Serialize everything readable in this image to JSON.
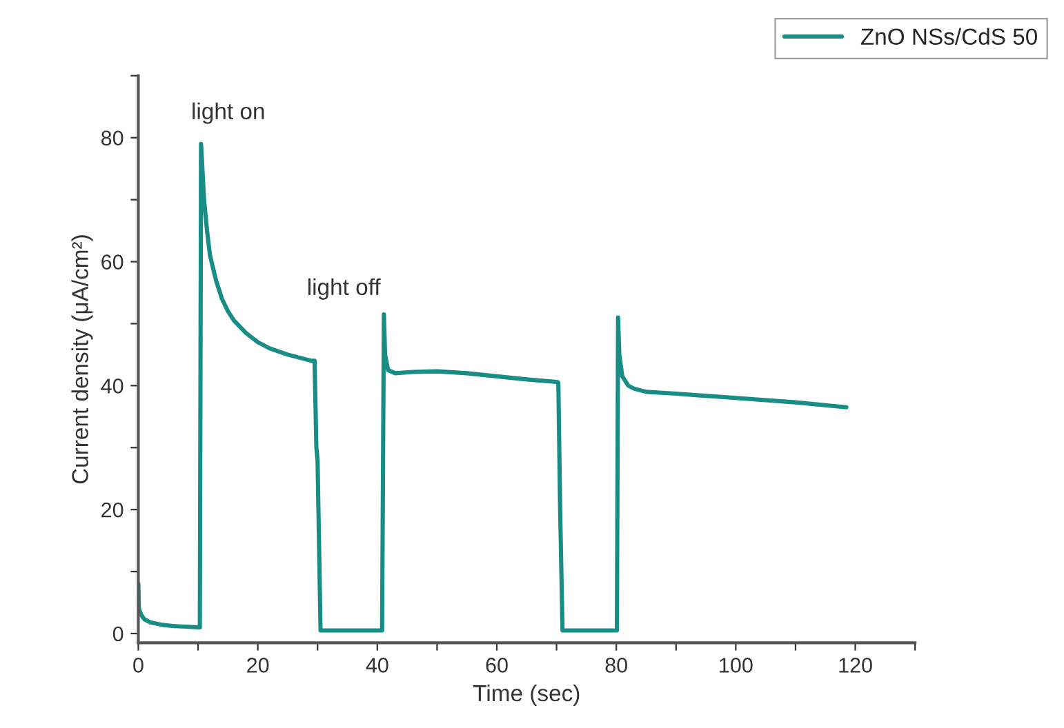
{
  "chart_data": {
    "type": "line",
    "xlabel": "Time (sec)",
    "ylabel": "Current density (μA/cm²)",
    "x": [
      0,
      0.1,
      0.5,
      1,
      2,
      4,
      6,
      8,
      10,
      10.3,
      10.5,
      11,
      11.5,
      12,
      13,
      14,
      15,
      16,
      18,
      20,
      22,
      25,
      27,
      29,
      29.5,
      29.8,
      30,
      30.5,
      32,
      35,
      38,
      40.8,
      41.1,
      41.3,
      41.8,
      43,
      46,
      50,
      55,
      60,
      65,
      70,
      70.3,
      70.6,
      71,
      75,
      80.1,
      80.3,
      80.5,
      81,
      82,
      83,
      85,
      90,
      100,
      110,
      118.5
    ],
    "series": [
      {
        "name": "ZnO NSs/CdS 50",
        "color": "#1a8c86",
        "values": [
          8,
          4,
          3,
          2.3,
          1.8,
          1.4,
          1.2,
          1.1,
          1,
          1,
          79,
          70,
          65,
          61,
          57,
          54,
          52,
          50.5,
          48.5,
          47,
          46,
          45,
          44.5,
          44,
          44,
          30,
          28,
          0.5,
          0.5,
          0.5,
          0.5,
          0.5,
          51.5,
          45,
          42.5,
          42,
          42.2,
          42.3,
          42,
          41.5,
          41,
          40.6,
          40.5,
          20,
          0.5,
          0.5,
          0.5,
          51,
          45,
          41.5,
          40,
          39.5,
          39,
          38.7,
          38,
          37.3,
          36.5
        ]
      }
    ],
    "xlim": [
      0,
      130
    ],
    "ylim": [
      -1.5,
      90
    ],
    "xticks": [
      0,
      {
        "value": 10,
        "label": null
      },
      20,
      {
        "value": 30,
        "label": null
      },
      40,
      {
        "value": 50,
        "label": null
      },
      60,
      {
        "value": 70,
        "label": null
      },
      80,
      {
        "value": 90,
        "label": null
      },
      100,
      {
        "value": 110,
        "label": null
      },
      120,
      {
        "value": 130,
        "label": null
      }
    ],
    "yticks": [
      0,
      {
        "value": 10,
        "label": null
      },
      20,
      {
        "value": 30,
        "label": null
      },
      40,
      {
        "value": 50,
        "label": null
      },
      60,
      {
        "value": 70,
        "label": null
      },
      80,
      {
        "value": 90,
        "label": null
      }
    ],
    "annotations": [
      "light on",
      "light off"
    ],
    "grid": false,
    "legend": "top right",
    "marker": "none",
    "line_style": "solid"
  }
}
